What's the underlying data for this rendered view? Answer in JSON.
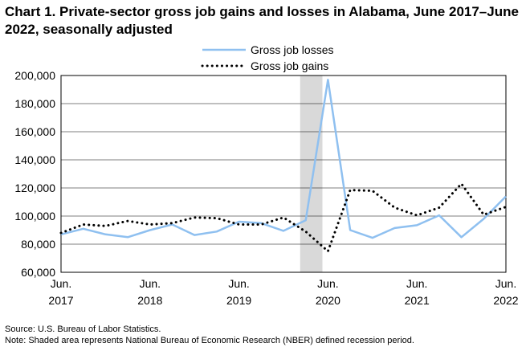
{
  "chart_data": {
    "type": "line",
    "title": "Chart 1. Private-sector gross job gains and losses in Alabama, June 2017–June 2022, seasonally adjusted",
    "xlabel": "",
    "ylabel": "",
    "x_tick_labels": [
      [
        "Jun.",
        "2017"
      ],
      [
        "Jun.",
        "2018"
      ],
      [
        "Jun.",
        "2019"
      ],
      [
        "Jun.",
        "2020"
      ],
      [
        "Jun.",
        "2021"
      ],
      [
        "Jun.",
        "2022"
      ]
    ],
    "ylim": [
      60000,
      200000
    ],
    "yticks": [
      60000,
      80000,
      100000,
      120000,
      140000,
      160000,
      180000,
      200000
    ],
    "ytick_labels": [
      "60,000",
      "80,000",
      "100,000",
      "120,000",
      "140,000",
      "160,000",
      "180,000",
      "200,000"
    ],
    "quarters": [
      "Jun 2017",
      "Sep 2017",
      "Dec 2017",
      "Mar 2018",
      "Jun 2018",
      "Sep 2018",
      "Dec 2018",
      "Mar 2019",
      "Jun 2019",
      "Sep 2019",
      "Dec 2019",
      "Mar 2020",
      "Jun 2020",
      "Sep 2020",
      "Dec 2020",
      "Mar 2021",
      "Jun 2021",
      "Sep 2021",
      "Dec 2021",
      "Mar 2022",
      "Jun 2022"
    ],
    "recession_shading": {
      "start_index": 10.75,
      "end_index": 11.75
    },
    "series": [
      {
        "name": "Gross job losses",
        "style": "solid",
        "color": "#8fc0f0",
        "values": [
          87000,
          91000,
          87000,
          85000,
          90000,
          94000,
          86500,
          89000,
          96000,
          95000,
          89500,
          97000,
          197000,
          90000,
          84500,
          91500,
          93500,
          100500,
          85000,
          98000,
          114000
        ]
      },
      {
        "name": "Gross job gains",
        "style": "dotted",
        "color": "#000000",
        "values": [
          88000,
          94000,
          93000,
          96500,
          94000,
          95000,
          99000,
          98500,
          94000,
          94000,
          99000,
          89000,
          75000,
          118500,
          118000,
          106000,
          100500,
          106000,
          123000,
          101000,
          106500
        ]
      }
    ],
    "legend_position": "top-center"
  },
  "footnotes": {
    "source": "Source: U.S. Bureau of Labor Statistics.",
    "note": "Note: Shaded area represents National Bureau of Economic Research (NBER) defined recession period."
  }
}
